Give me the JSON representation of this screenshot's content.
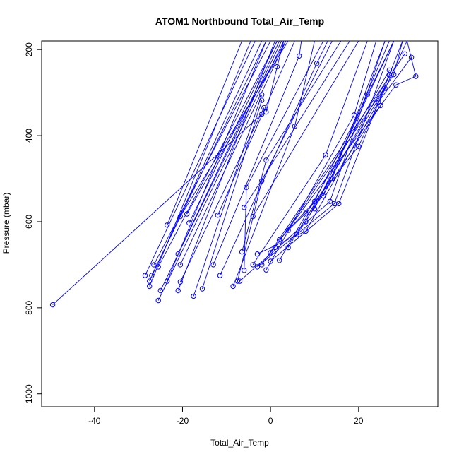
{
  "chart_data": {
    "type": "line",
    "title": "ATOM1 Northbound Total_Air_Temp",
    "xlabel": "Total_Air_Temp",
    "ylabel": "Pressure (mbar)",
    "xlim": [
      -52,
      38
    ],
    "ylim": [
      1030,
      180
    ],
    "y_reversed": true,
    "xticks": [
      -40,
      -20,
      0,
      20
    ],
    "yticks": [
      200,
      400,
      600,
      800,
      1000
    ],
    "grid": false,
    "legend": "none",
    "color": "#0000ff",
    "marker": "open-circle",
    "series": [
      {
        "points": [
          [
            -49.5,
            793
          ],
          [
            -2,
            350
          ]
        ]
      },
      {
        "points": [
          [
            -23.5,
            608
          ],
          [
            -6.5,
            180
          ]
        ]
      },
      {
        "points": [
          [
            -28.5,
            725
          ],
          [
            -3.5,
            180
          ]
        ]
      },
      {
        "points": [
          [
            -27.5,
            738
          ],
          [
            -2,
            180
          ]
        ]
      },
      {
        "points": [
          [
            -27,
            725
          ],
          [
            -1,
            180
          ]
        ]
      },
      {
        "points": [
          [
            -26.5,
            700
          ],
          [
            0,
            180
          ]
        ]
      },
      {
        "points": [
          [
            -25.5,
            705
          ],
          [
            1.5,
            180
          ]
        ]
      },
      {
        "points": [
          [
            -25,
            760
          ],
          [
            2.5,
            180
          ]
        ]
      },
      {
        "points": [
          [
            -25.5,
            783
          ],
          [
            3,
            180
          ]
        ]
      },
      {
        "points": [
          [
            -20.5,
            588
          ],
          [
            4,
            180
          ]
        ]
      },
      {
        "points": [
          [
            -19,
            582
          ],
          [
            3.5,
            180
          ]
        ]
      },
      {
        "points": [
          [
            -18.5,
            603
          ],
          [
            1.5,
            180
          ]
        ]
      },
      {
        "points": [
          [
            -21,
            675
          ],
          [
            2,
            180
          ]
        ]
      },
      {
        "points": [
          [
            -20.5,
            700
          ],
          [
            3.5,
            180
          ]
        ]
      },
      {
        "points": [
          [
            -21,
            760
          ],
          [
            1,
            180
          ]
        ]
      },
      {
        "points": [
          [
            -23.5,
            738
          ],
          [
            -1,
            180
          ]
        ]
      },
      {
        "points": [
          [
            -27.5,
            750
          ],
          [
            -4.5,
            180
          ]
        ]
      },
      {
        "points": [
          [
            -17.5,
            773
          ],
          [
            -2,
            305
          ]
        ]
      },
      {
        "points": [
          [
            -15.5,
            756
          ],
          [
            -2,
            318
          ]
        ]
      },
      {
        "points": [
          [
            -20.5,
            740
          ],
          [
            -1.5,
            335
          ]
        ]
      },
      {
        "points": [
          [
            -1,
            345
          ],
          [
            1.5,
            240
          ],
          [
            3,
            180
          ]
        ]
      },
      {
        "points": [
          [
            -12,
            585
          ],
          [
            5.5,
            180
          ]
        ]
      },
      {
        "points": [
          [
            -13,
            700
          ],
          [
            6.5,
            215
          ],
          [
            7,
            180
          ]
        ]
      },
      {
        "points": [
          [
            -11.5,
            725
          ],
          [
            10.5,
            232
          ],
          [
            13,
            180
          ]
        ]
      },
      {
        "points": [
          [
            -8.5,
            750
          ],
          [
            5.5,
            378
          ],
          [
            10,
            180
          ]
        ]
      },
      {
        "points": [
          [
            -6.5,
            670
          ],
          [
            -1,
            457
          ],
          [
            16,
            180
          ]
        ]
      },
      {
        "points": [
          [
            -6,
            713
          ],
          [
            -5.5,
            520
          ],
          [
            12,
            180
          ]
        ]
      },
      {
        "points": [
          [
            -7.5,
            738
          ],
          [
            -2,
            505
          ],
          [
            14,
            180
          ]
        ]
      },
      {
        "points": [
          [
            -6,
            567
          ],
          [
            18,
            180
          ]
        ]
      },
      {
        "points": [
          [
            -4,
            588
          ],
          [
            20,
            180
          ]
        ]
      },
      {
        "points": [
          [
            -4,
            700
          ],
          [
            12.5,
            445
          ],
          [
            22,
            180
          ]
        ]
      },
      {
        "points": [
          [
            -1,
            712
          ],
          [
            19,
            352
          ],
          [
            24,
            180
          ]
        ]
      },
      {
        "points": [
          [
            -7,
            738
          ],
          [
            13.5,
            553
          ],
          [
            26,
            180
          ]
        ]
      },
      {
        "points": [
          [
            -3,
            705
          ],
          [
            14.5,
            558
          ],
          [
            28,
            180
          ]
        ]
      },
      {
        "points": [
          [
            0,
            692
          ],
          [
            15.5,
            558
          ],
          [
            30,
            180
          ]
        ]
      },
      {
        "points": [
          [
            2,
            642
          ],
          [
            10,
            553
          ],
          [
            22,
            305
          ],
          [
            28,
            180
          ]
        ]
      },
      {
        "points": [
          [
            4,
            620
          ],
          [
            8,
            580
          ],
          [
            20,
            425
          ],
          [
            31,
            180
          ]
        ]
      },
      {
        "points": [
          [
            -3,
            675
          ],
          [
            8,
            622
          ],
          [
            24.5,
            322
          ],
          [
            32,
            218
          ]
        ]
      },
      {
        "points": [
          [
            1,
            660
          ],
          [
            28,
            258
          ],
          [
            30,
            180
          ]
        ]
      },
      {
        "points": [
          [
            0,
            672
          ],
          [
            28.5,
            282
          ],
          [
            33,
            262
          ],
          [
            31,
            180
          ]
        ]
      },
      {
        "points": [
          [
            -2,
            700
          ],
          [
            30.5,
            210
          ]
        ]
      },
      {
        "points": [
          [
            2,
            690
          ],
          [
            27,
            248
          ]
        ]
      },
      {
        "points": [
          [
            4,
            660
          ],
          [
            26,
            290
          ]
        ]
      },
      {
        "points": [
          [
            6,
            630
          ],
          [
            25,
            330
          ]
        ]
      },
      {
        "points": [
          [
            8,
            600
          ],
          [
            27,
            260
          ]
        ]
      },
      {
        "points": [
          [
            10,
            570
          ],
          [
            28,
            180
          ]
        ]
      },
      {
        "points": [
          [
            12,
            540
          ],
          [
            27,
            180
          ]
        ]
      },
      {
        "points": [
          [
            14,
            500
          ],
          [
            26,
            180
          ]
        ]
      }
    ]
  }
}
